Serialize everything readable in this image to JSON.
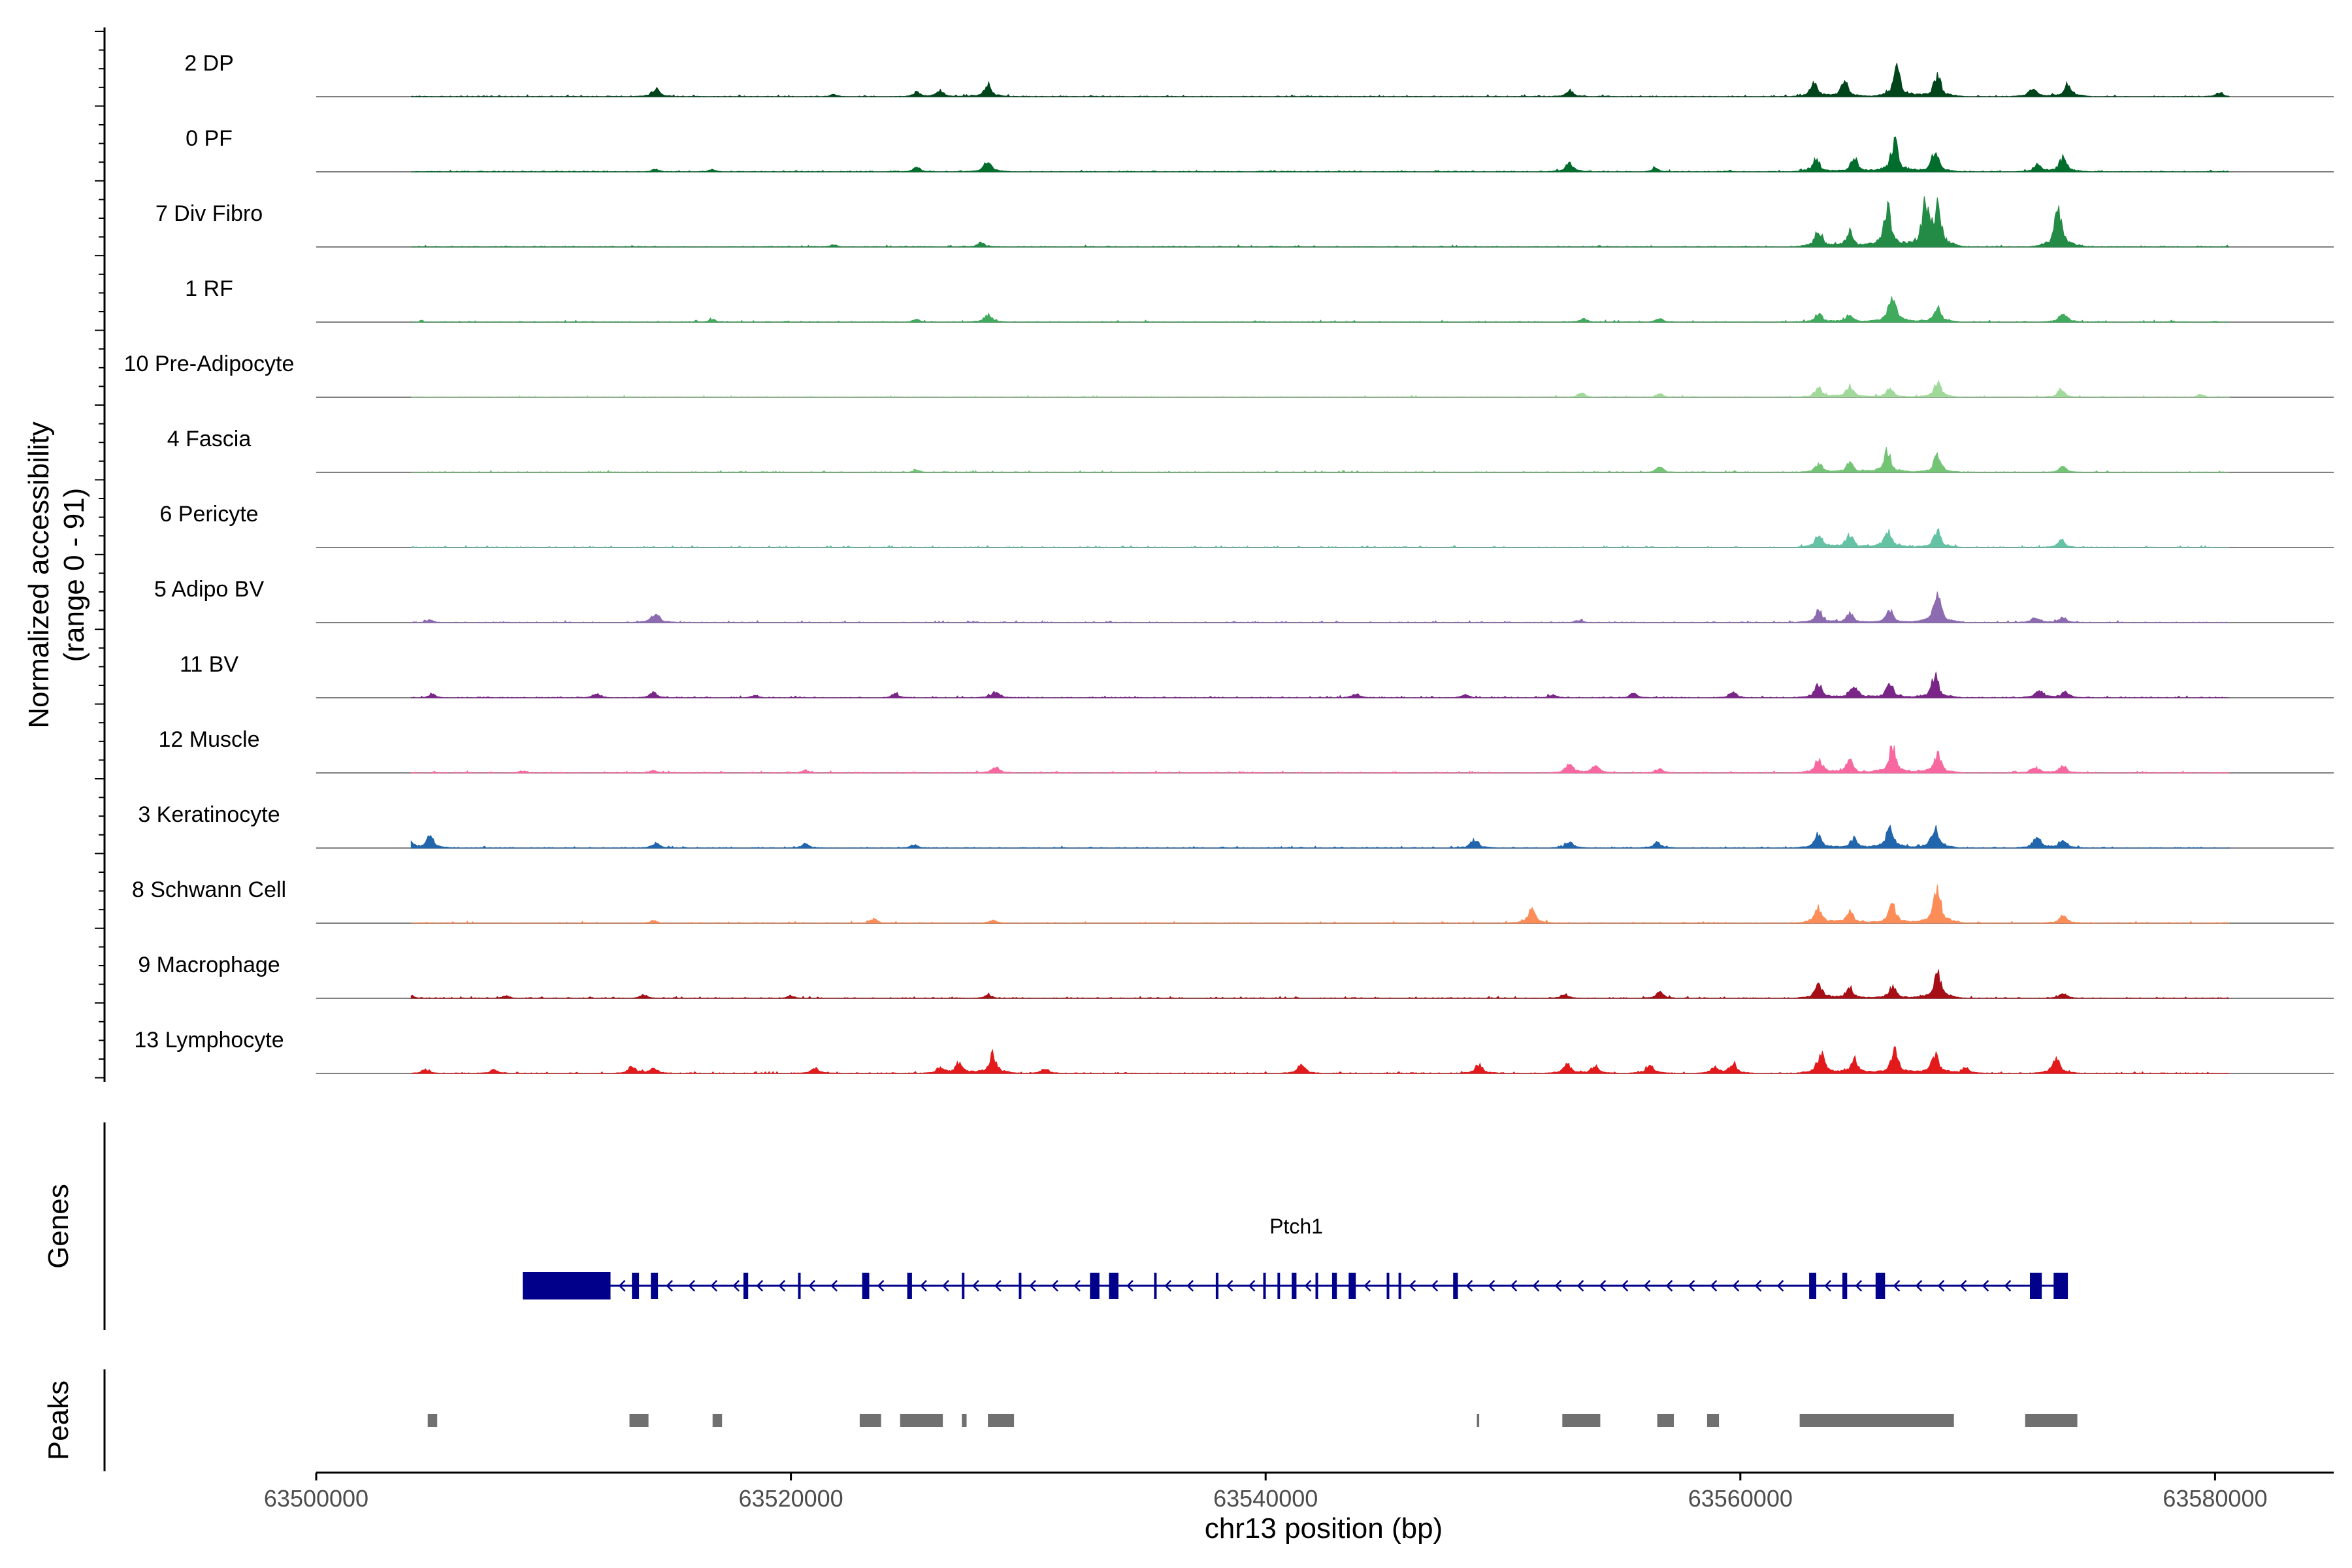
{
  "chart_data": {
    "type": "area",
    "chromosome": "chr13",
    "xlim": [
      63500000,
      63585000
    ],
    "xlabel": "chr13 position (bp)",
    "ylabel_line1": "Normalized accessibility",
    "ylabel_line2": "(range 0 - 91)",
    "y_range": [
      0,
      91
    ],
    "x_ticks": [
      "63500000",
      "63520000",
      "63540000",
      "63560000",
      "63580000"
    ],
    "x_tick_values": [
      63500000,
      63520000,
      63540000,
      63560000,
      63580000
    ],
    "series": [
      {
        "name": "2 DP",
        "color": "#00441b",
        "peaks": [
          [
            63514300,
            0.2
          ],
          [
            63521800,
            0.05
          ],
          [
            63525300,
            0.1
          ],
          [
            63526300,
            0.14
          ],
          [
            63528300,
            0.28
          ],
          [
            63552800,
            0.15
          ],
          [
            63563100,
            0.3
          ],
          [
            63564400,
            0.34
          ],
          [
            63566600,
            0.68
          ],
          [
            63568300,
            0.5
          ],
          [
            63572300,
            0.22
          ],
          [
            63573800,
            0.32
          ],
          [
            63580200,
            0.1
          ]
        ]
      },
      {
        "name": "0 PF",
        "color": "#006d2c",
        "peaks": [
          [
            63514300,
            0.06
          ],
          [
            63516700,
            0.06
          ],
          [
            63525300,
            0.1
          ],
          [
            63528300,
            0.26
          ],
          [
            63552800,
            0.22
          ],
          [
            63556400,
            0.08
          ],
          [
            63563200,
            0.3
          ],
          [
            63564800,
            0.3
          ],
          [
            63566500,
            0.74
          ],
          [
            63568200,
            0.46
          ],
          [
            63572500,
            0.16
          ],
          [
            63573600,
            0.36
          ]
        ]
      },
      {
        "name": "7 Div Fibro",
        "color": "#238b45",
        "peaks": [
          [
            63521800,
            0.05
          ],
          [
            63528000,
            0.1
          ],
          [
            63563300,
            0.4
          ],
          [
            63564600,
            0.34
          ],
          [
            63566200,
            0.96
          ],
          [
            63567800,
            0.95
          ],
          [
            63568300,
            0.85
          ],
          [
            63573400,
            0.9
          ]
        ]
      },
      {
        "name": "1 RF",
        "color": "#41ab5d",
        "peaks": [
          [
            63516700,
            0.06
          ],
          [
            63525300,
            0.06
          ],
          [
            63528300,
            0.18
          ],
          [
            63553400,
            0.08
          ],
          [
            63556600,
            0.08
          ],
          [
            63563300,
            0.2
          ],
          [
            63564600,
            0.18
          ],
          [
            63566400,
            0.62
          ],
          [
            63568300,
            0.34
          ],
          [
            63573600,
            0.24
          ]
        ]
      },
      {
        "name": "10 Pre-Adipocyte",
        "color": "#a1d99b",
        "peaks": [
          [
            63553300,
            0.1
          ],
          [
            63556600,
            0.08
          ],
          [
            63563300,
            0.22
          ],
          [
            63564600,
            0.26
          ],
          [
            63566300,
            0.22
          ],
          [
            63568300,
            0.36
          ],
          [
            63573500,
            0.18
          ],
          [
            63579400,
            0.06
          ]
        ]
      },
      {
        "name": "4 Fascia",
        "color": "#74c476",
        "peaks": [
          [
            63525300,
            0.05
          ],
          [
            63556600,
            0.12
          ],
          [
            63563300,
            0.2
          ],
          [
            63564600,
            0.22
          ],
          [
            63566200,
            0.48
          ],
          [
            63568300,
            0.42
          ],
          [
            63573600,
            0.14
          ]
        ]
      },
      {
        "name": "6 Pericyte",
        "color": "#66c2a4",
        "peaks": [
          [
            63563300,
            0.32
          ],
          [
            63564600,
            0.3
          ],
          [
            63566200,
            0.44
          ],
          [
            63568300,
            0.4
          ],
          [
            63573500,
            0.16
          ]
        ]
      },
      {
        "name": "5 Adipo BV",
        "color": "#8c6bb1",
        "peaks": [
          [
            63504800,
            0.06
          ],
          [
            63514300,
            0.24
          ],
          [
            63553200,
            0.06
          ],
          [
            63563300,
            0.28
          ],
          [
            63564600,
            0.22
          ],
          [
            63566300,
            0.28
          ],
          [
            63568300,
            0.68
          ],
          [
            63572400,
            0.14
          ],
          [
            63573600,
            0.12
          ]
        ]
      },
      {
        "name": "11 BV",
        "color": "#7a2688",
        "peaks": [
          [
            63504900,
            0.08
          ],
          [
            63511800,
            0.1
          ],
          [
            63514200,
            0.12
          ],
          [
            63518500,
            0.06
          ],
          [
            63524400,
            0.1
          ],
          [
            63528600,
            0.14
          ],
          [
            63543800,
            0.1
          ],
          [
            63548400,
            0.08
          ],
          [
            63552100,
            0.08
          ],
          [
            63555500,
            0.1
          ],
          [
            63559700,
            0.12
          ],
          [
            63563300,
            0.34
          ],
          [
            63564800,
            0.3
          ],
          [
            63566300,
            0.34
          ],
          [
            63568200,
            0.54
          ],
          [
            63572600,
            0.2
          ],
          [
            63573700,
            0.14
          ]
        ]
      },
      {
        "name": "12 Muscle",
        "color": "#f768a1",
        "peaks": [
          [
            63508700,
            0.05
          ],
          [
            63514200,
            0.06
          ],
          [
            63520600,
            0.06
          ],
          [
            63528600,
            0.16
          ],
          [
            63552800,
            0.22
          ],
          [
            63553900,
            0.18
          ],
          [
            63556600,
            0.1
          ],
          [
            63563300,
            0.32
          ],
          [
            63564600,
            0.3
          ],
          [
            63566400,
            0.62
          ],
          [
            63568300,
            0.44
          ],
          [
            63572400,
            0.14
          ],
          [
            63573600,
            0.16
          ]
        ]
      },
      {
        "name": "3 Keratinocyte",
        "color": "#2166ac",
        "peaks": [
          [
            63504000,
            0.12
          ],
          [
            63504800,
            0.28
          ],
          [
            63514300,
            0.12
          ],
          [
            63520600,
            0.1
          ],
          [
            63525200,
            0.08
          ],
          [
            63548800,
            0.2
          ],
          [
            63552800,
            0.16
          ],
          [
            63556500,
            0.14
          ],
          [
            63563300,
            0.34
          ],
          [
            63564800,
            0.22
          ],
          [
            63566300,
            0.52
          ],
          [
            63568200,
            0.5
          ],
          [
            63572500,
            0.28
          ],
          [
            63573600,
            0.2
          ]
        ]
      },
      {
        "name": "8 Schwann Cell",
        "color": "#fc8d59",
        "peaks": [
          [
            63514200,
            0.06
          ],
          [
            63523500,
            0.1
          ],
          [
            63528500,
            0.08
          ],
          [
            63551200,
            0.32
          ],
          [
            63563300,
            0.36
          ],
          [
            63564600,
            0.3
          ],
          [
            63566400,
            0.48
          ],
          [
            63568300,
            0.78
          ],
          [
            63573600,
            0.18
          ]
        ]
      },
      {
        "name": "9 Macrophage",
        "color": "#a50f15",
        "peaks": [
          [
            63503900,
            0.1
          ],
          [
            63508000,
            0.06
          ],
          [
            63513800,
            0.08
          ],
          [
            63520000,
            0.06
          ],
          [
            63528300,
            0.08
          ],
          [
            63552600,
            0.1
          ],
          [
            63556600,
            0.14
          ],
          [
            63563300,
            0.32
          ],
          [
            63564600,
            0.26
          ],
          [
            63566400,
            0.28
          ],
          [
            63568300,
            0.62
          ],
          [
            63573600,
            0.12
          ]
        ]
      },
      {
        "name": "13 Lymphocyte",
        "color": "#e31a1c",
        "peaks": [
          [
            63504600,
            0.1
          ],
          [
            63507500,
            0.1
          ],
          [
            63513300,
            0.16
          ],
          [
            63514200,
            0.14
          ],
          [
            63521000,
            0.14
          ],
          [
            63526300,
            0.14
          ],
          [
            63527100,
            0.24
          ],
          [
            63528500,
            0.46
          ],
          [
            63530700,
            0.12
          ],
          [
            63541500,
            0.2
          ],
          [
            63549000,
            0.22
          ],
          [
            63552700,
            0.22
          ],
          [
            63553900,
            0.18
          ],
          [
            63556200,
            0.22
          ],
          [
            63558900,
            0.14
          ],
          [
            63559700,
            0.22
          ],
          [
            63563400,
            0.48
          ],
          [
            63564800,
            0.36
          ],
          [
            63566500,
            0.54
          ],
          [
            63568200,
            0.48
          ],
          [
            63569500,
            0.14
          ],
          [
            63573300,
            0.36
          ]
        ]
      }
    ],
    "genes": {
      "label": "Genes",
      "name": "Ptch1",
      "strand": "-",
      "color": "#00008b",
      "start": 63508700,
      "end": 63573800,
      "exons": [
        [
          63508700,
          63512400
        ],
        [
          63513300,
          63513600
        ],
        [
          63514100,
          63514400
        ],
        [
          63518000,
          63518200
        ],
        [
          63520300,
          63520400
        ],
        [
          63523000,
          63523300
        ],
        [
          63524900,
          63525100
        ],
        [
          63527200,
          63527300
        ],
        [
          63529600,
          63529700
        ],
        [
          63532600,
          63533000
        ],
        [
          63533400,
          63533800
        ],
        [
          63535300,
          63535400
        ],
        [
          63537900,
          63538000
        ],
        [
          63539900,
          63540000
        ],
        [
          63540500,
          63540600
        ],
        [
          63541100,
          63541300
        ],
        [
          63542100,
          63542200
        ],
        [
          63542800,
          63543000
        ],
        [
          63543500,
          63543800
        ],
        [
          63545100,
          63545200
        ],
        [
          63545600,
          63545700
        ],
        [
          63547900,
          63548100
        ],
        [
          63562900,
          63563200
        ],
        [
          63564300,
          63564500
        ],
        [
          63565700,
          63566100
        ],
        [
          63572200,
          63572700
        ],
        [
          63573200,
          63573800
        ]
      ]
    },
    "peaks_track": {
      "label": "Peaks",
      "color": "#707070",
      "regions": [
        [
          63504700,
          63505100
        ],
        [
          63513200,
          63514000
        ],
        [
          63516700,
          63517100
        ],
        [
          63522900,
          63523800
        ],
        [
          63524600,
          63526400
        ],
        [
          63527200,
          63527400
        ],
        [
          63528300,
          63529400
        ],
        [
          63548900,
          63549000
        ],
        [
          63552500,
          63554100
        ],
        [
          63556500,
          63557200
        ],
        [
          63558600,
          63559100
        ],
        [
          63562500,
          63569000
        ],
        [
          63572000,
          63574200
        ]
      ]
    }
  }
}
